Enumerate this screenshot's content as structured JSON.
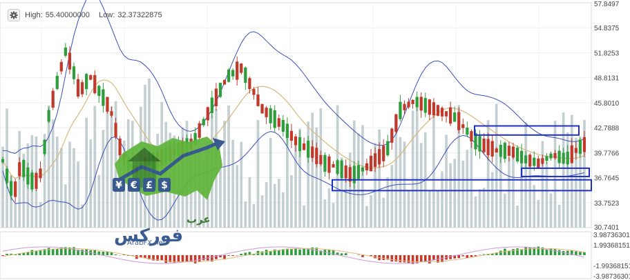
{
  "header": {
    "high_label": "High:",
    "high_value": "55.40000000",
    "low_label": "Low:",
    "low_value": "32.37322875",
    "settings_icon": "gear-icon"
  },
  "watermark": {
    "arabic_top": "عرب",
    "arabic_main": "فوركس",
    "site": "ArabFX.net",
    "symbols": [
      "¥",
      "€",
      "£",
      "$"
    ]
  },
  "colors": {
    "up": "#2e9e3c",
    "down": "#c0392b",
    "volume": "#b9c7c9",
    "bollinger": "#3a4fb8",
    "ma": "#d6b87a",
    "box": "#1f2fc0",
    "osc_fast": "#c89ad8",
    "osc_slow": "#e3b97e"
  },
  "chart_data": [
    {
      "type": "candlestick",
      "price_axis_ticks": [
        "57.8497",
        "54.8375",
        "51.8253",
        "48.8131",
        "45.8010",
        "42.7888",
        "39.7766",
        "36.7645",
        "33.7523",
        "30.7401"
      ],
      "ylim": [
        30.7401,
        57.8497
      ],
      "high": 55.4,
      "low": 32.37322875,
      "indicators": [
        "Bollinger Bands",
        "Moving Average",
        "Volume"
      ],
      "annotations": [
        "rectangle",
        "rectangle",
        "rectangle"
      ],
      "n_candles": 140
    },
    {
      "type": "bar",
      "name_hidden": true,
      "osc_axis_ticks": [
        "3.98736301",
        "1.99368151",
        "-1.99368151",
        "-3.98736301"
      ],
      "ylim": [
        -3.98736301,
        3.98736301
      ]
    }
  ]
}
